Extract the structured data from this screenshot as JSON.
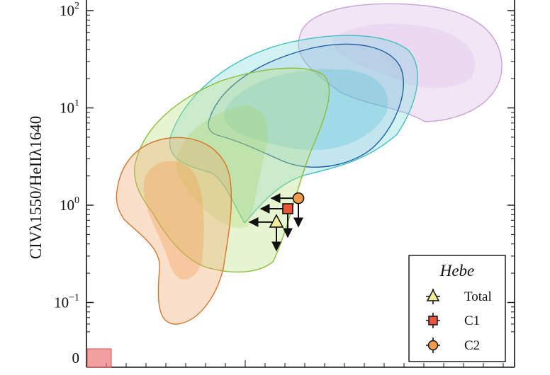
{
  "chart_data": {
    "type": "scatter",
    "ylabel": "CIVλ1550/HeIIλ1640",
    "yscale": "log",
    "ylim": [
      0.035,
      160
    ],
    "ytick_labels": [
      {
        "base": "10",
        "exp": "2"
      },
      {
        "base": "10",
        "exp": "1"
      },
      {
        "base": "10",
        "exp": "0"
      },
      {
        "base": "10",
        "exp": "−1"
      },
      {
        "base": "0",
        "exp": ""
      }
    ],
    "xlabel": "",
    "grid": false,
    "legend": {
      "title": "Hebe",
      "placement": "bottom-right",
      "entries": [
        "Total",
        "C1",
        "C2"
      ]
    },
    "series": [
      {
        "name": "Total",
        "marker": "triangle",
        "color": "#f4ee9a",
        "y": 0.67,
        "x_upper_limit": true,
        "y_upper_limit": true
      },
      {
        "name": "C1",
        "marker": "square",
        "color": "#e8553a",
        "y": 0.92,
        "x_upper_limit": true,
        "y_upper_limit": true
      },
      {
        "name": "C2",
        "marker": "circle",
        "color": "#f39b4c",
        "y": 1.18,
        "x_upper_limit": true,
        "y_upper_limit": true
      }
    ],
    "background_regions": [
      {
        "color": "#f2a56b",
        "description_color": "orange"
      },
      {
        "color": "#b9df7a",
        "description_color": "green"
      },
      {
        "color": "#7fd6dc",
        "description_color": "cyan"
      },
      {
        "color": "#5a9fd0",
        "description_color": "blue"
      },
      {
        "color": "#d9b8e6",
        "description_color": "lavender"
      }
    ],
    "zero_marker_color": "#e96b6b"
  }
}
